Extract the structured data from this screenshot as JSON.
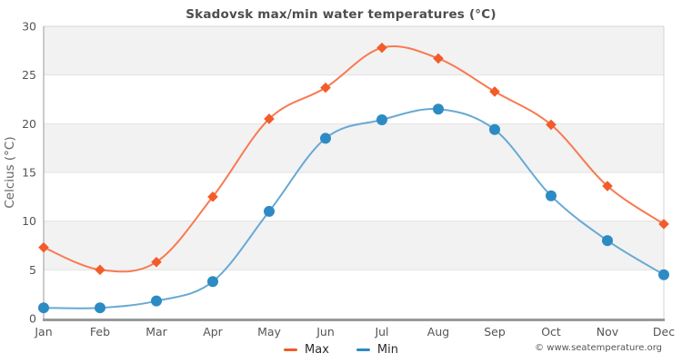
{
  "title": "Skadovsk max/min water temperatures (°C)",
  "footer": "© www.seatemperature.org",
  "plot_style": {
    "band_color": "#f2f2f2",
    "grid_color": "#e2e2e2",
    "border_color": "#d4d4d4",
    "axis_color": "#999999",
    "tick_label_color": "#555555",
    "axis_title_color": "#666666"
  },
  "chart_data": {
    "type": "line",
    "title": "Skadovsk max/min water temperatures (°C)",
    "xlabel": "",
    "ylabel": "Celcius (°C)",
    "ylim": [
      0,
      30
    ],
    "ytick_step": 5,
    "grid": true,
    "legend_position": "bottom",
    "categories": [
      "Jan",
      "Feb",
      "Mar",
      "Apr",
      "May",
      "Jun",
      "Jul",
      "Aug",
      "Sep",
      "Oct",
      "Nov",
      "Dec"
    ],
    "series": [
      {
        "name": "Max",
        "marker": "diamond",
        "line_color": "#f87a52",
        "marker_color": "#f25c2a",
        "values": [
          7.3,
          5.0,
          5.8,
          12.5,
          20.5,
          23.7,
          27.8,
          26.7,
          23.3,
          19.9,
          13.6,
          9.7
        ]
      },
      {
        "name": "Min",
        "marker": "circle",
        "line_color": "#67a9d4",
        "marker_color": "#2d8bc4",
        "values": [
          1.1,
          1.1,
          1.8,
          3.8,
          11.0,
          18.5,
          20.4,
          21.5,
          19.4,
          12.6,
          8.0,
          4.5
        ]
      }
    ]
  }
}
